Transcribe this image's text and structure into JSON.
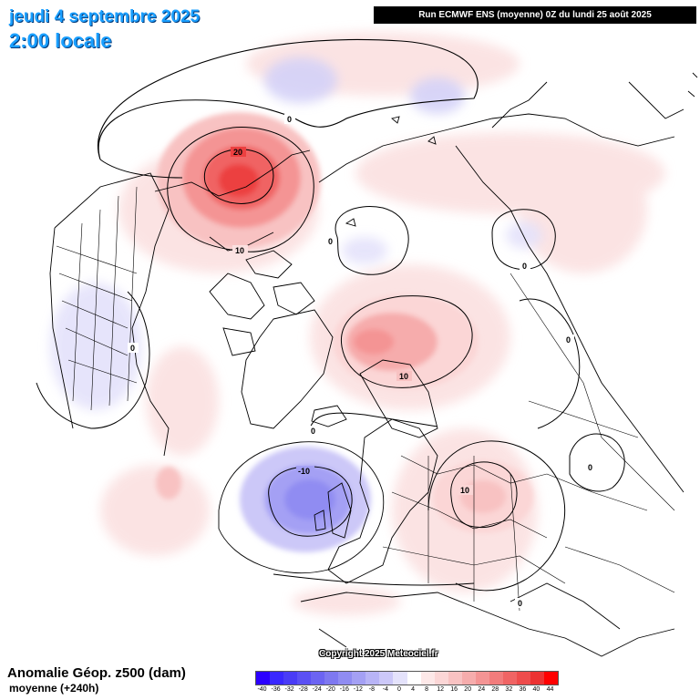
{
  "header": {
    "date": "jeudi 4 septembre 2025",
    "time": "2:00 locale",
    "run_info": "Run ECMWF ENS (moyenne) 0Z du lundi 25 août 2025"
  },
  "map": {
    "projection": "polar stereographic, North Pole centered",
    "contour_labels": [
      "0",
      "20",
      "10",
      "0",
      "0",
      "0",
      "10",
      "0",
      "0",
      "-10",
      "10",
      "0",
      "0"
    ],
    "colors": {
      "strong_positive": "#f04848",
      "positive": "#f8c8c8",
      "weak_positive": "#fbe1e1",
      "negative": "#c8c8f8",
      "strong_negative": "#8c8cf0"
    }
  },
  "copyright": "Copyright 2025 Meteociel.fr",
  "legend": {
    "title": "Anomalie Géop. z500 (dam)",
    "subtitle": "moyenne   (+240h)",
    "scale_labels": [
      "-40",
      "-36",
      "-32",
      "-28",
      "-24",
      "-20",
      "-16",
      "-12",
      "-8",
      "-4",
      "0",
      "4",
      "8",
      "12",
      "16",
      "20",
      "24",
      "28",
      "32",
      "36",
      "40",
      "44"
    ],
    "scale_colors": [
      "#2b00ff",
      "#3a28ff",
      "#4a3cf6",
      "#5b50f4",
      "#6c64f2",
      "#7e78f0",
      "#908cf2",
      "#a4a0f4",
      "#b8b4f6",
      "#ccc8f8",
      "#e4e2fb",
      "#ffffff",
      "#fde8e8",
      "#fbd6d6",
      "#f8c2c2",
      "#f6acac",
      "#f49494",
      "#f27c7c",
      "#f06464",
      "#ee4c4c",
      "#ec3232",
      "#ff0000"
    ]
  }
}
